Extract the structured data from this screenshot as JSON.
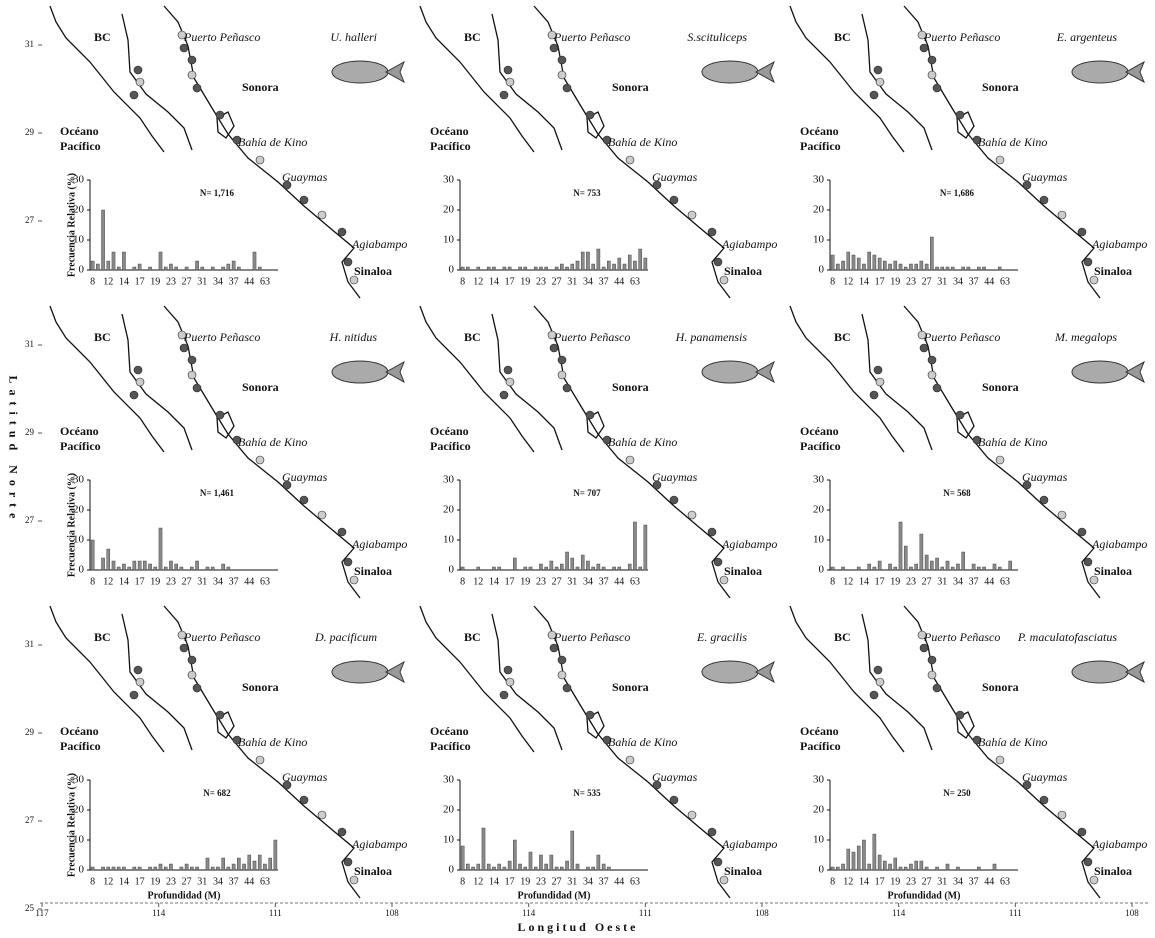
{
  "axes": {
    "y_title": "Latitud Norte",
    "x_title": "Longitud Oeste",
    "lat_ticks": [
      31,
      29,
      27,
      25
    ],
    "lon_ticks": [
      117,
      114,
      111,
      108
    ]
  },
  "map_labels": {
    "bc": "BC",
    "puerto": "Puerto Peñasco",
    "sonora": "Sonora",
    "oceano": [
      "Océano",
      "Pacífico"
    ],
    "bahia": "Bahía de Kino",
    "guaymas": "Guaymas",
    "agiabampo": "Agiabampo",
    "sinaloa": "Sinaloa"
  },
  "chart_data": [
    {
      "type": "bar",
      "title": "U. halleri",
      "n_label": "N= 1,716",
      "ylabel": "Frecuencia Relativa (%)",
      "color": "#8a8a8a",
      "ylim": [
        0,
        30
      ],
      "yticks": [
        0,
        10,
        20,
        30
      ],
      "categories": [
        "8",
        null,
        null,
        "12",
        null,
        null,
        "14",
        null,
        null,
        "17",
        null,
        null,
        "19",
        null,
        null,
        "23",
        null,
        null,
        "27",
        null,
        null,
        "31",
        null,
        null,
        "34",
        null,
        null,
        "37",
        null,
        null,
        "44",
        null,
        null,
        "63",
        null,
        null
      ],
      "values": [
        3,
        2,
        20,
        3,
        6,
        1,
        6,
        0,
        1,
        2,
        0,
        1,
        0,
        6,
        1,
        2,
        1,
        0,
        1,
        0,
        3,
        1,
        0,
        1,
        0,
        1,
        2,
        3,
        1,
        0,
        0,
        6,
        1,
        0,
        0,
        0
      ]
    },
    {
      "type": "bar",
      "title": "S.scituliceps",
      "n_label": "N= 753",
      "color": "#8a8a8a",
      "ylim": [
        0,
        30
      ],
      "yticks": [
        0,
        10,
        20,
        30
      ],
      "categories": [
        "8",
        null,
        null,
        "12",
        null,
        null,
        "14",
        null,
        null,
        "17",
        null,
        null,
        "19",
        null,
        null,
        "23",
        null,
        null,
        "27",
        null,
        null,
        "31",
        null,
        null,
        "34",
        null,
        null,
        "37",
        null,
        null,
        "44",
        null,
        null,
        "63",
        null,
        null
      ],
      "values": [
        1,
        1,
        0,
        1,
        0,
        1,
        1,
        0,
        1,
        1,
        0,
        1,
        1,
        0,
        1,
        1,
        1,
        0,
        1,
        2,
        1,
        2,
        3,
        6,
        6,
        2,
        7,
        1,
        3,
        2,
        4,
        2,
        5,
        3,
        7,
        4
      ]
    },
    {
      "type": "bar",
      "title": "E. argenteus",
      "n_label": "N= 1,686",
      "color": "#8a8a8a",
      "ylim": [
        0,
        30
      ],
      "yticks": [
        0,
        10,
        20,
        30
      ],
      "categories": [
        "8",
        null,
        null,
        "12",
        null,
        null,
        "14",
        null,
        null,
        "17",
        null,
        null,
        "19",
        null,
        null,
        "23",
        null,
        null,
        "27",
        null,
        null,
        "31",
        null,
        null,
        "34",
        null,
        null,
        "37",
        null,
        null,
        "44",
        null,
        null,
        "63",
        null,
        null
      ],
      "values": [
        5,
        2,
        3,
        6,
        5,
        4,
        2,
        6,
        5,
        4,
        3,
        2,
        3,
        2,
        1,
        2,
        2,
        3,
        2,
        11,
        1,
        1,
        1,
        1,
        0,
        1,
        1,
        0,
        1,
        1,
        0,
        0,
        1,
        0,
        0,
        0
      ]
    },
    {
      "type": "bar",
      "title": "H. nitidus",
      "n_label": "N= 1,461",
      "ylabel": "Frecuencia Relativa (%)",
      "color": "#8a8a8a",
      "ylim": [
        0,
        30
      ],
      "yticks": [
        0,
        10,
        20,
        30
      ],
      "categories": [
        "8",
        null,
        null,
        "12",
        null,
        null,
        "14",
        null,
        null,
        "17",
        null,
        null,
        "19",
        null,
        null,
        "23",
        null,
        null,
        "27",
        null,
        null,
        "31",
        null,
        null,
        "34",
        null,
        null,
        "37",
        null,
        null,
        "44",
        null,
        null,
        "63",
        null,
        null
      ],
      "values": [
        10,
        0,
        4,
        7,
        3,
        1,
        2,
        1,
        3,
        3,
        3,
        2,
        1,
        14,
        1,
        3,
        2,
        1,
        0,
        1,
        3,
        0,
        1,
        1,
        0,
        2,
        1,
        0,
        0,
        0,
        0,
        0,
        0,
        0,
        0,
        0
      ]
    },
    {
      "type": "bar",
      "title": "H. panamensis",
      "n_label": "N= 707",
      "color": "#8a8a8a",
      "ylim": [
        0,
        30
      ],
      "yticks": [
        0,
        10,
        20,
        30
      ],
      "categories": [
        "8",
        null,
        null,
        "12",
        null,
        null,
        "14",
        null,
        null,
        "17",
        null,
        null,
        "19",
        null,
        null,
        "23",
        null,
        null,
        "27",
        null,
        null,
        "31",
        null,
        null,
        "34",
        null,
        null,
        "37",
        null,
        null,
        "44",
        null,
        null,
        "63",
        null,
        null
      ],
      "values": [
        1,
        0,
        0,
        1,
        0,
        0,
        1,
        1,
        0,
        0,
        4,
        0,
        1,
        1,
        0,
        2,
        1,
        3,
        1,
        2,
        6,
        4,
        1,
        5,
        3,
        1,
        2,
        1,
        0,
        1,
        1,
        0,
        2,
        16,
        1,
        15
      ]
    },
    {
      "type": "bar",
      "title": "M. megalops",
      "n_label": "N= 568",
      "color": "#8a8a8a",
      "ylim": [
        0,
        30
      ],
      "yticks": [
        0,
        10,
        20,
        30
      ],
      "categories": [
        "8",
        null,
        null,
        "12",
        null,
        null,
        "14",
        null,
        null,
        "17",
        null,
        null,
        "19",
        null,
        null,
        "23",
        null,
        null,
        "27",
        null,
        null,
        "31",
        null,
        null,
        "34",
        null,
        null,
        "37",
        null,
        null,
        "44",
        null,
        null,
        "63",
        null,
        null
      ],
      "values": [
        1,
        0,
        1,
        0,
        0,
        1,
        0,
        2,
        1,
        3,
        0,
        2,
        1,
        16,
        8,
        1,
        2,
        12,
        5,
        3,
        4,
        1,
        3,
        1,
        2,
        6,
        0,
        2,
        1,
        1,
        0,
        2,
        1,
        0,
        3,
        0
      ]
    },
    {
      "type": "bar",
      "title": "D. pacificum",
      "n_label": "N= 682",
      "ylabel": "Frecuencia Relativa (%)",
      "xlabel": "Profundidad (M)",
      "color": "#8a8a8a",
      "ylim": [
        0,
        30
      ],
      "yticks": [
        0,
        10,
        20,
        30
      ],
      "categories": [
        "8",
        null,
        null,
        "12",
        null,
        null,
        "14",
        null,
        null,
        "17",
        null,
        null,
        "19",
        null,
        null,
        "23",
        null,
        null,
        "27",
        null,
        null,
        "31",
        null,
        null,
        "34",
        null,
        null,
        "37",
        null,
        null,
        "44",
        null,
        null,
        "63",
        null,
        null
      ],
      "values": [
        1,
        0,
        1,
        1,
        1,
        1,
        1,
        0,
        1,
        1,
        0,
        1,
        1,
        2,
        1,
        2,
        0,
        1,
        2,
        1,
        1,
        0,
        4,
        1,
        1,
        4,
        1,
        2,
        4,
        2,
        5,
        3,
        5,
        2,
        4,
        10
      ]
    },
    {
      "type": "bar",
      "title": "E. gracilis",
      "n_label": "N= 535",
      "xlabel": "Profundidad (M)",
      "color": "#8a8a8a",
      "ylim": [
        0,
        30
      ],
      "yticks": [
        0,
        10,
        20,
        30
      ],
      "categories": [
        "8",
        null,
        null,
        "12",
        null,
        null,
        "14",
        null,
        null,
        "17",
        null,
        null,
        "19",
        null,
        null,
        "23",
        null,
        null,
        "27",
        null,
        null,
        "31",
        null,
        null,
        "34",
        null,
        null,
        "37",
        null,
        null,
        "44",
        null,
        null,
        "63",
        null,
        null
      ],
      "values": [
        8,
        2,
        1,
        2,
        14,
        2,
        1,
        2,
        1,
        3,
        10,
        2,
        1,
        6,
        1,
        5,
        2,
        5,
        1,
        1,
        3,
        13,
        2,
        0,
        1,
        1,
        5,
        2,
        1,
        0,
        0,
        0,
        0,
        0,
        0,
        0
      ]
    },
    {
      "type": "bar",
      "title": "P. maculatofasciatus",
      "n_label": "N= 250",
      "xlabel": "Profundidad (M)",
      "color": "#8a8a8a",
      "ylim": [
        0,
        30
      ],
      "yticks": [
        0,
        10,
        20,
        30
      ],
      "categories": [
        "8",
        null,
        null,
        "12",
        null,
        null,
        "14",
        null,
        null,
        "17",
        null,
        null,
        "19",
        null,
        null,
        "23",
        null,
        null,
        "27",
        null,
        null,
        "31",
        null,
        null,
        "34",
        null,
        null,
        "37",
        null,
        null,
        "44",
        null,
        null,
        "63",
        null,
        null
      ],
      "values": [
        1,
        1,
        2,
        7,
        6,
        8,
        10,
        2,
        12,
        5,
        3,
        2,
        4,
        1,
        1,
        2,
        3,
        3,
        1,
        0,
        1,
        0,
        2,
        0,
        1,
        0,
        0,
        0,
        1,
        0,
        0,
        2,
        0,
        0,
        0,
        0
      ]
    }
  ]
}
